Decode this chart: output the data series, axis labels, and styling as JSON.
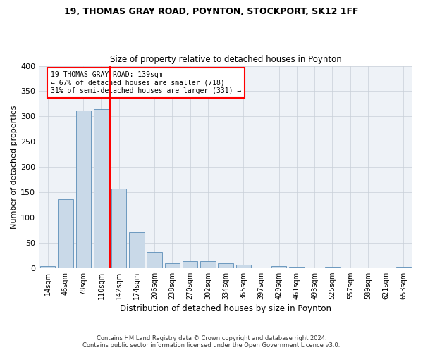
{
  "title1": "19, THOMAS GRAY ROAD, POYNTON, STOCKPORT, SK12 1FF",
  "title2": "Size of property relative to detached houses in Poynton",
  "xlabel": "Distribution of detached houses by size in Poynton",
  "ylabel": "Number of detached properties",
  "footnote": "Contains HM Land Registry data © Crown copyright and database right 2024.\nContains public sector information licensed under the Open Government Licence v3.0.",
  "bin_labels": [
    "14sqm",
    "46sqm",
    "78sqm",
    "110sqm",
    "142sqm",
    "174sqm",
    "206sqm",
    "238sqm",
    "270sqm",
    "302sqm",
    "334sqm",
    "365sqm",
    "397sqm",
    "429sqm",
    "461sqm",
    "493sqm",
    "525sqm",
    "557sqm",
    "589sqm",
    "621sqm",
    "653sqm"
  ],
  "bar_heights": [
    4,
    136,
    311,
    315,
    157,
    70,
    32,
    10,
    13,
    13,
    10,
    7,
    0,
    4,
    2,
    0,
    2,
    0,
    0,
    0,
    2
  ],
  "bar_color": "#c9d9e8",
  "bar_edge_color": "#5b8db8",
  "vline_bin_index": 3,
  "annotation_text": "19 THOMAS GRAY ROAD: 139sqm\n← 67% of detached houses are smaller (718)\n31% of semi-detached houses are larger (331) →",
  "annotation_box_color": "white",
  "annotation_box_edge": "red",
  "vline_color": "red",
  "bg_color": "#eef2f7",
  "grid_color": "#c8cfd8",
  "ylim": [
    0,
    400
  ],
  "yticks": [
    0,
    50,
    100,
    150,
    200,
    250,
    300,
    350,
    400
  ]
}
